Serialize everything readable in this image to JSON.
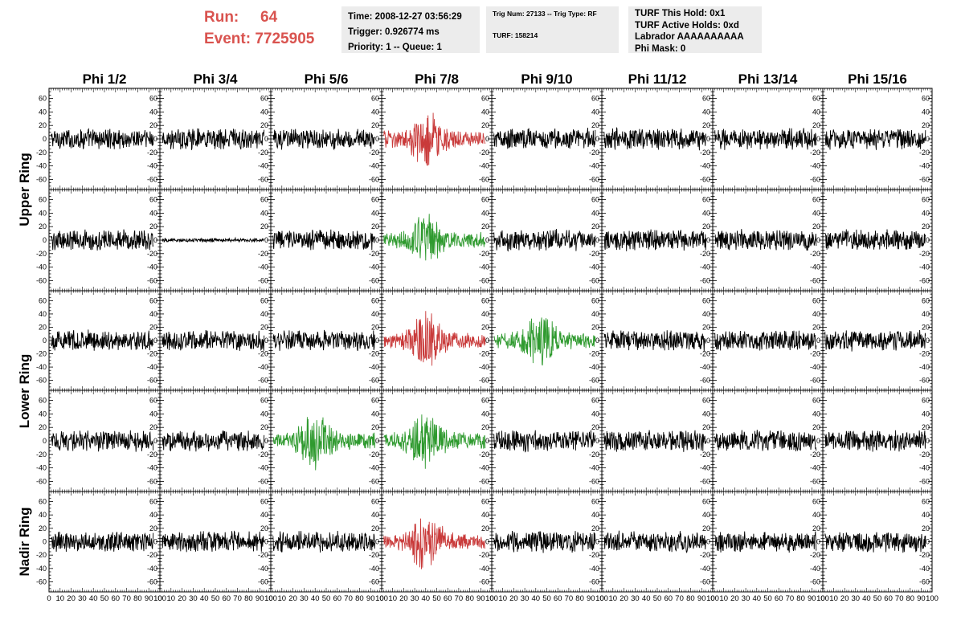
{
  "header": {
    "run_label": "Run:",
    "run_value": "64",
    "event_label": "Event:",
    "event_value": "7725905",
    "time": "Time: 2008-12-27 03:56:29",
    "trigger": "Trigger: 0.926774 ms",
    "priority": "Priority: 1 -- Queue: 1",
    "trig_num": "Trig Num: 27133 -- Trig Type: RF",
    "turf": "TURF: 158214",
    "turf_this_hold": "TURF This Hold: 0x1",
    "turf_active_holds": "TURF Active Holds: 0xd",
    "labrador": "Labrador AAAAAAAAAA",
    "phi_mask": "Phi Mask: 0"
  },
  "colors": {
    "header_accent": "#d9534f",
    "trace_default": "#000000",
    "trace_red": "#c93a3a",
    "trace_green": "#2f9a2f"
  },
  "chart_data": {
    "type": "line",
    "columns": [
      "Phi 1/2",
      "Phi 3/4",
      "Phi 5/6",
      "Phi 7/8",
      "Phi 9/10",
      "Phi 11/12",
      "Phi 13/14",
      "Phi 15/16"
    ],
    "row_labels": [
      {
        "label": "Upper Ring",
        "rows": [
          0,
          1
        ]
      },
      {
        "label": "Lower Ring",
        "rows": [
          2,
          3
        ]
      },
      {
        "label": "Nadir Ring",
        "rows": [
          4
        ]
      }
    ],
    "xlim": [
      0,
      100
    ],
    "ylim": [
      -75,
      75
    ],
    "y_ticks": [
      -60,
      -40,
      -20,
      0,
      20,
      40,
      60
    ],
    "x_ticks": [
      "0",
      "10",
      "20",
      "30",
      "40",
      "50",
      "60",
      "70",
      "80",
      "90",
      "100"
    ],
    "highlighted": [
      {
        "row": 0,
        "col": 3,
        "color": "red"
      },
      {
        "row": 1,
        "col": 3,
        "color": "green"
      },
      {
        "row": 2,
        "col": 3,
        "color": "red"
      },
      {
        "row": 2,
        "col": 4,
        "color": "green"
      },
      {
        "row": 3,
        "col": 2,
        "color": "green"
      },
      {
        "row": 3,
        "col": 3,
        "color": "green"
      },
      {
        "row": 4,
        "col": 3,
        "color": "red"
      }
    ]
  }
}
